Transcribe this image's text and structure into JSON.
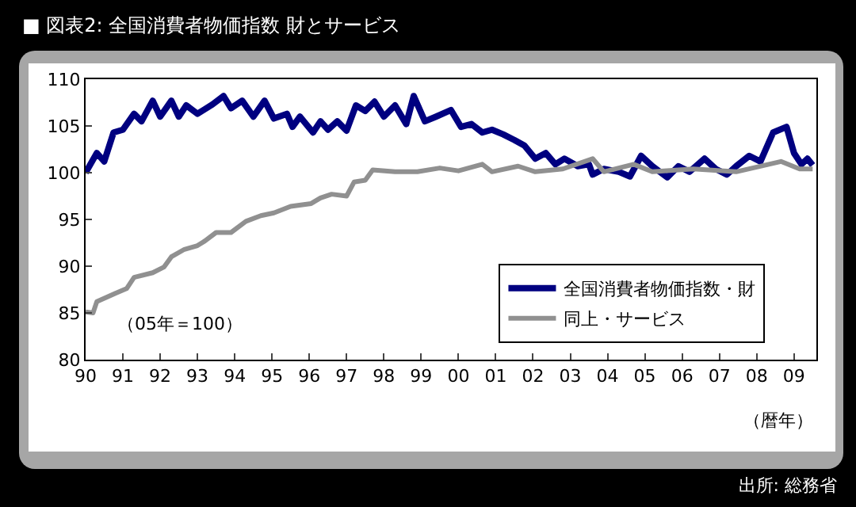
{
  "chart_data": {
    "type": "line",
    "title": "■ 図表2: 全国消費者物価指数 財とサービス",
    "xlabel": "（暦年）",
    "annotations": [
      "（05年＝100）",
      "出所: 総務省"
    ],
    "xlim": [
      1990,
      2009.6
    ],
    "xticks": [
      {
        "value": 1990,
        "label": "90"
      },
      {
        "value": 1991,
        "label": "91"
      },
      {
        "value": 1992,
        "label": "92"
      },
      {
        "value": 1993,
        "label": "93"
      },
      {
        "value": 1994,
        "label": "94"
      },
      {
        "value": 1995,
        "label": "95"
      },
      {
        "value": 1996,
        "label": "96"
      },
      {
        "value": 1997,
        "label": "97"
      },
      {
        "value": 1998,
        "label": "98"
      },
      {
        "value": 1999,
        "label": "99"
      },
      {
        "value": 2000,
        "label": "00"
      },
      {
        "value": 2001,
        "label": "01"
      },
      {
        "value": 2002,
        "label": "02"
      },
      {
        "value": 2003,
        "label": "03"
      },
      {
        "value": 2004,
        "label": "04"
      },
      {
        "value": 2005,
        "label": "05"
      },
      {
        "value": 2006,
        "label": "06"
      },
      {
        "value": 2007,
        "label": "07"
      },
      {
        "value": 2008,
        "label": "08"
      },
      {
        "value": 2009,
        "label": "09"
      }
    ],
    "ylim": [
      80,
      110
    ],
    "yticks": [
      80,
      85,
      90,
      95,
      100,
      105,
      110
    ],
    "grid": false,
    "legend": "bottom right",
    "marker": "none",
    "line_style": "solid",
    "series": [
      {
        "name": "全国消費者物価指数・財",
        "color": "#000080",
        "x": [
          1990,
          1990.3,
          1990.5,
          1990.75,
          1991,
          1991.3,
          1991.5,
          1991.8,
          1992,
          1992.3,
          1992.5,
          1992.7,
          1993,
          1993.4,
          1993.7,
          1993.9,
          1994.2,
          1994.5,
          1994.8,
          1995.05,
          1995.4,
          1995.55,
          1995.75,
          1996.1,
          1996.3,
          1996.5,
          1996.75,
          1997,
          1997.25,
          1997.5,
          1997.75,
          1998,
          1998.3,
          1998.6,
          1998.8,
          1999.1,
          1999.4,
          1999.8,
          2000.07,
          2000.35,
          2000.64,
          2000.9,
          2001.2,
          2001.5,
          2001.77,
          2002.06,
          2002.34,
          2002.6,
          2002.84,
          2003.2,
          2003.5,
          2003.6,
          2003.9,
          2004.3,
          2004.6,
          2004.9,
          2005.2,
          2005.6,
          2005.9,
          2006.2,
          2006.6,
          2006.9,
          2007.2,
          2007.45,
          2007.8,
          2008.1,
          2008.44,
          2008.8,
          2009,
          2009.2,
          2009.36,
          2009.5
        ],
        "values": [
          100,
          102.1,
          101.2,
          104.3,
          104.6,
          106.3,
          105.5,
          107.7,
          106,
          107.7,
          106,
          107.2,
          106.3,
          107.3,
          108.2,
          106.9,
          107.7,
          106,
          107.7,
          105.8,
          106.3,
          104.9,
          106,
          104.3,
          105.5,
          104.6,
          105.5,
          104.5,
          107.2,
          106.6,
          107.6,
          106,
          107.2,
          105.2,
          108.2,
          105.5,
          106,
          106.7,
          104.9,
          105.2,
          104.3,
          104.6,
          104.1,
          103.5,
          102.9,
          101.5,
          102.1,
          100.9,
          101.5,
          100.7,
          100.9,
          99.8,
          100.4,
          100.1,
          99.6,
          101.8,
          100.7,
          99.5,
          100.7,
          100.1,
          101.5,
          100.4,
          99.8,
          100.7,
          101.8,
          101.2,
          104.3,
          104.9,
          102.1,
          100.9,
          101.5,
          100.8
        ]
      },
      {
        "name": "同上・サービス",
        "color": "#909090",
        "x": [
          1990,
          1990.2,
          1990.3,
          1990.8,
          1991.1,
          1991.3,
          1991.8,
          1992.1,
          1992.3,
          1992.65,
          1993,
          1993.2,
          1993.5,
          1993.9,
          1994.3,
          1994.7,
          1995.05,
          1995.5,
          1996.05,
          1996.3,
          1996.6,
          1997,
          1997.2,
          1997.5,
          1997.7,
          1998.3,
          1998.9,
          1999.5,
          2000,
          2000.64,
          2000.9,
          2001.6,
          2002.06,
          2002.8,
          2003.6,
          2003.9,
          2004.7,
          2005.2,
          2006.3,
          2007.45,
          2008.65,
          2009.15,
          2009.5
        ],
        "values": [
          85.1,
          85,
          86.2,
          87.1,
          87.6,
          88.8,
          89.3,
          89.9,
          91,
          91.8,
          92.2,
          92.7,
          93.6,
          93.6,
          94.8,
          95.4,
          95.7,
          96.4,
          96.7,
          97.3,
          97.7,
          97.5,
          99,
          99.2,
          100.3,
          100.1,
          100.1,
          100.5,
          100.2,
          100.9,
          100.1,
          100.7,
          100.1,
          100.4,
          101.5,
          100.1,
          100.9,
          100.1,
          100.4,
          100.1,
          101.2,
          100.4,
          100.4
        ]
      }
    ]
  }
}
